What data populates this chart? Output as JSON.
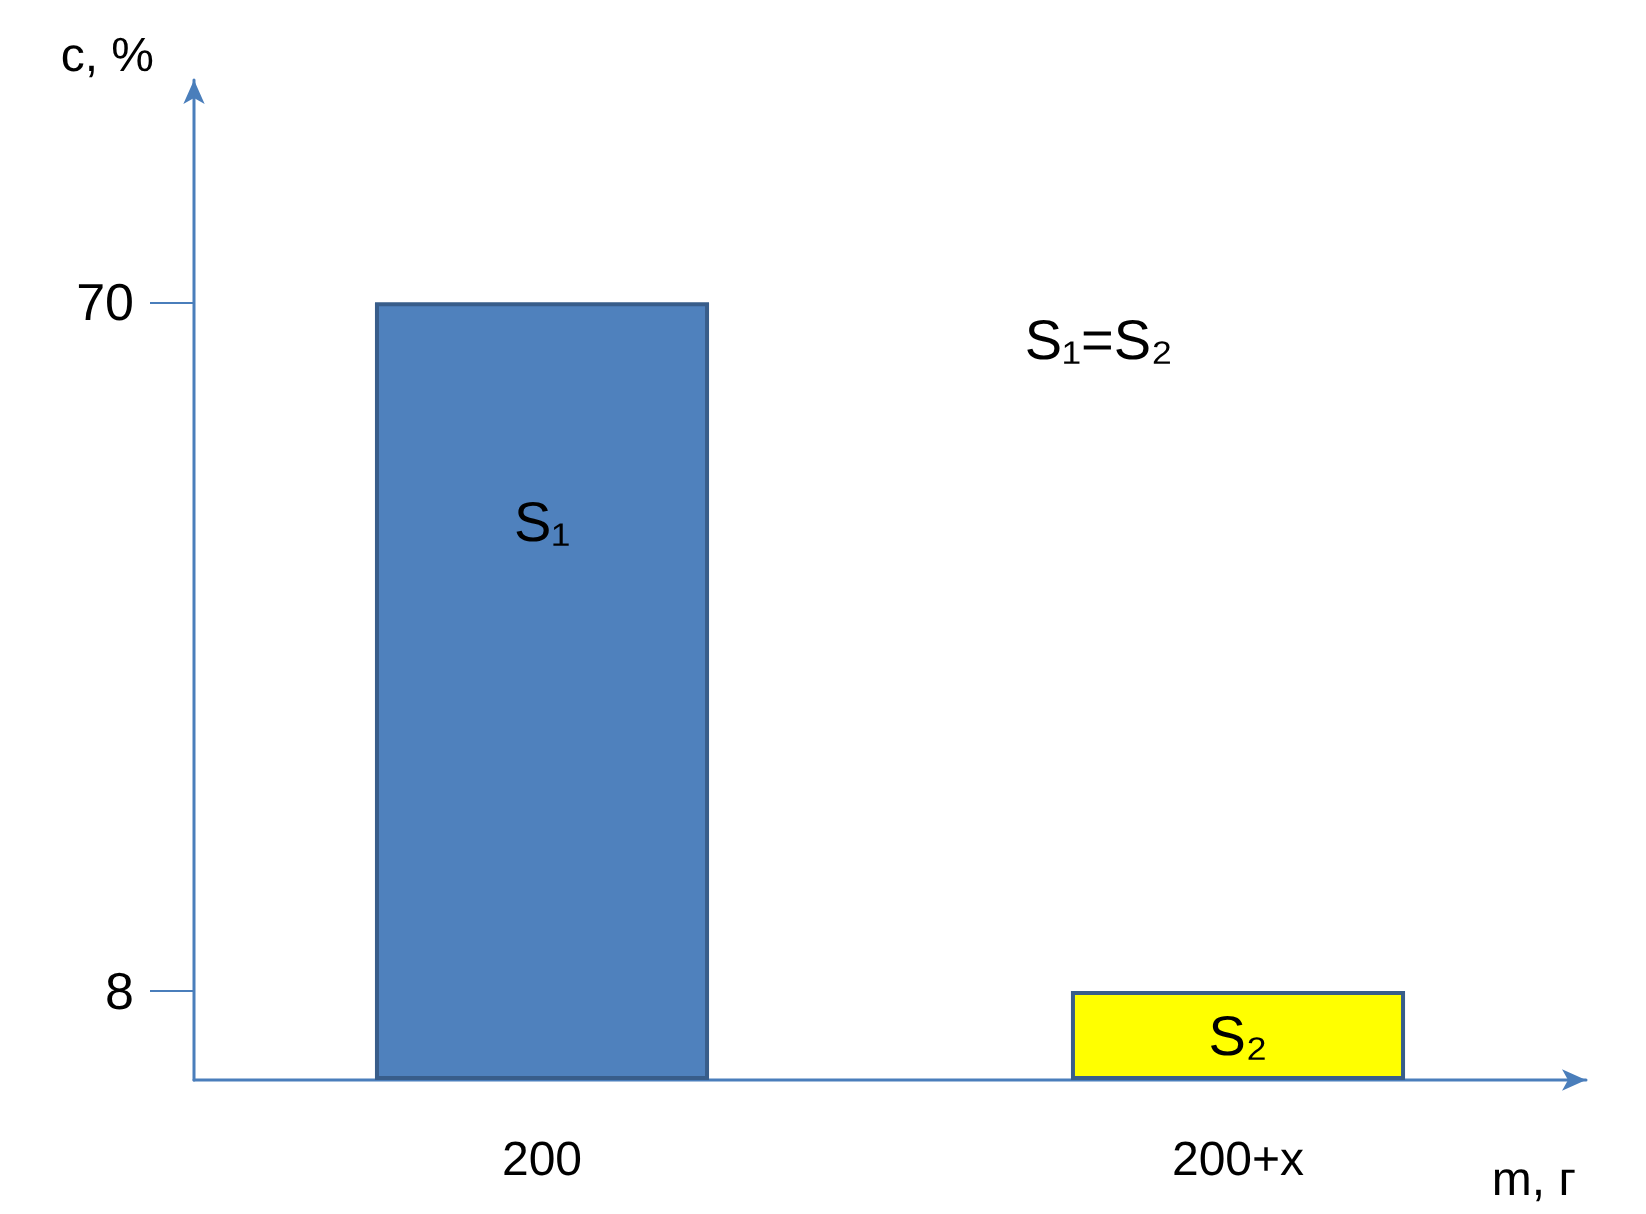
{
  "chart_data": {
    "type": "bar",
    "xlabel": "m, г",
    "ylabel": "c, %",
    "categories": [
      "200",
      "200+x"
    ],
    "values": [
      70,
      8
    ],
    "colors": [
      "#4f81bd",
      "#ffff00"
    ],
    "ylim": [
      0,
      90
    ],
    "yticks": [
      8,
      70
    ],
    "grid": false,
    "annotations": [
      "S₁",
      "S₂",
      "S₁=S₂"
    ]
  }
}
